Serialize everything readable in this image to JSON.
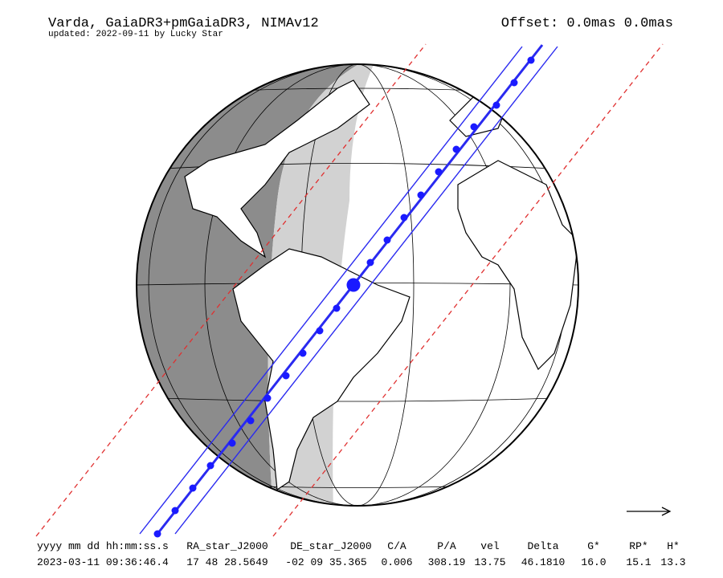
{
  "header": {
    "title": "Varda, GaiaDR3+pmGaiaDR3, NIMAv12",
    "updated": "updated: 2022-09-11 by Lucky Star",
    "offset": "Offset: 0.0mas 0.0mas"
  },
  "table": {
    "columns": [
      "yyyy mm dd hh:mm:ss.s",
      "RA_star_J2000",
      "DE_star_J2000",
      "C/A",
      "P/A",
      "vel",
      "Delta",
      "G*",
      "RP*",
      "H*"
    ],
    "values": [
      "2023-03-11 09:36:46.4",
      "17 48 28.5649",
      "-02 09 35.365",
      "0.006",
      "308.19",
      "13.75",
      "46.1810",
      "16.0",
      "15.1",
      "13.3"
    ]
  }
}
